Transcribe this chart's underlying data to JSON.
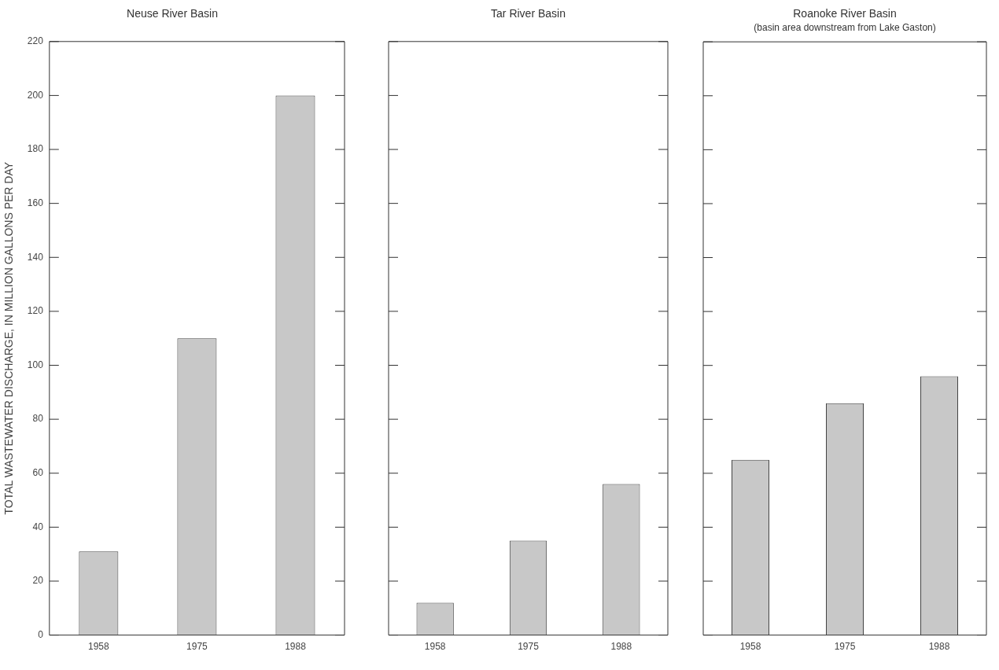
{
  "chart_data": [
    {
      "type": "bar",
      "title": "Neuse River Basin",
      "ylabel": "TOTAL WASTEWATER DISCHARGE, IN MILLION GALLONS PER DAY",
      "categories": [
        "1958",
        "1975",
        "1988"
      ],
      "values": [
        31,
        110,
        200
      ],
      "color": "#c8c8c8",
      "ylim": [
        0,
        220
      ],
      "yticks": [
        0,
        20,
        40,
        60,
        80,
        100,
        120,
        140,
        160,
        180,
        200,
        220
      ],
      "grid": false,
      "legend": false
    },
    {
      "type": "bar",
      "title": "Tar River Basin",
      "categories": [
        "1958",
        "1975",
        "1988"
      ],
      "values": [
        12,
        35,
        56
      ],
      "color": "#c8c8c8",
      "ylim": [
        0,
        220
      ],
      "yticks": [
        0,
        20,
        40,
        60,
        80,
        100,
        120,
        140,
        160,
        180,
        200,
        220
      ],
      "grid": false,
      "legend": false,
      "tick_labels": "x"
    },
    {
      "type": "bar",
      "title": "Roanoke River Basin",
      "subtitle": "(basin area downstream from Lake Gaston)",
      "categories": [
        "1958",
        "1975",
        "1988"
      ],
      "values": [
        65,
        86,
        96
      ],
      "color": "#c8c8c8",
      "ylim": [
        0,
        220
      ],
      "yticks": [
        0,
        20,
        40,
        60,
        80,
        100,
        120,
        140,
        160,
        180,
        200,
        220
      ],
      "grid": false,
      "legend": false,
      "tick_labels": "x"
    }
  ]
}
